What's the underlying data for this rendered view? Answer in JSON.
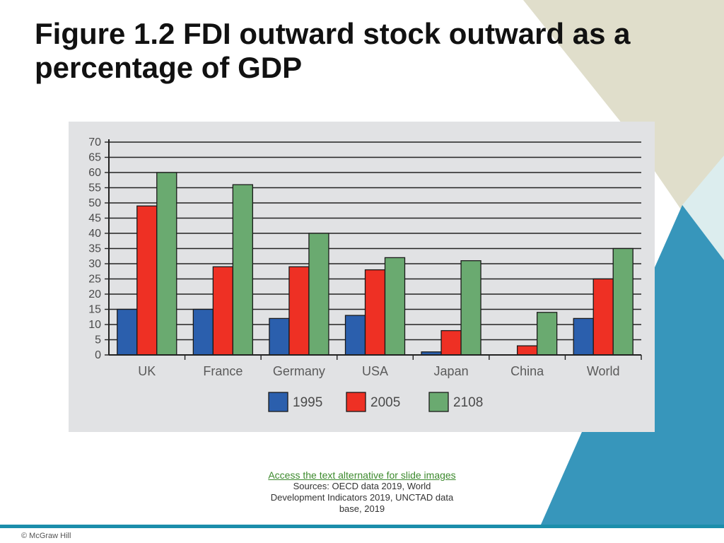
{
  "slide": {
    "title": "Figure 1.2 FDI outward stock outward as a percentage of GDP",
    "alt_link": "Access the text alternative for slide images",
    "sources": "Sources: OECD data 2019, World Development Indicators 2019, UNCTAD data base, 2019",
    "copyright": "© McGraw Hill"
  },
  "colors": {
    "deco_beige": "#e0decb",
    "deco_light_blue": "#dcedee",
    "deco_blue": "#3796bb",
    "footer_bar": "#1b8eab"
  },
  "chart_data": {
    "type": "bar",
    "categories": [
      "UK",
      "France",
      "Germany",
      "USA",
      "Japan",
      "China",
      "World"
    ],
    "series": [
      {
        "name": "1995",
        "color": "#2b5fad",
        "values": [
          15,
          15,
          12,
          13,
          1,
          0,
          12
        ]
      },
      {
        "name": "2005",
        "color": "#ee3024",
        "values": [
          49,
          29,
          29,
          28,
          8,
          3,
          25
        ]
      },
      {
        "name": "2108",
        "color": "#6aaa70",
        "values": [
          60,
          56,
          40,
          32,
          31,
          14,
          35
        ]
      }
    ],
    "ylim": [
      0,
      70
    ],
    "yticks": [
      0,
      5,
      10,
      15,
      20,
      25,
      30,
      35,
      40,
      45,
      50,
      55,
      60,
      65,
      70
    ],
    "grid": true,
    "legend_position": "bottom"
  }
}
